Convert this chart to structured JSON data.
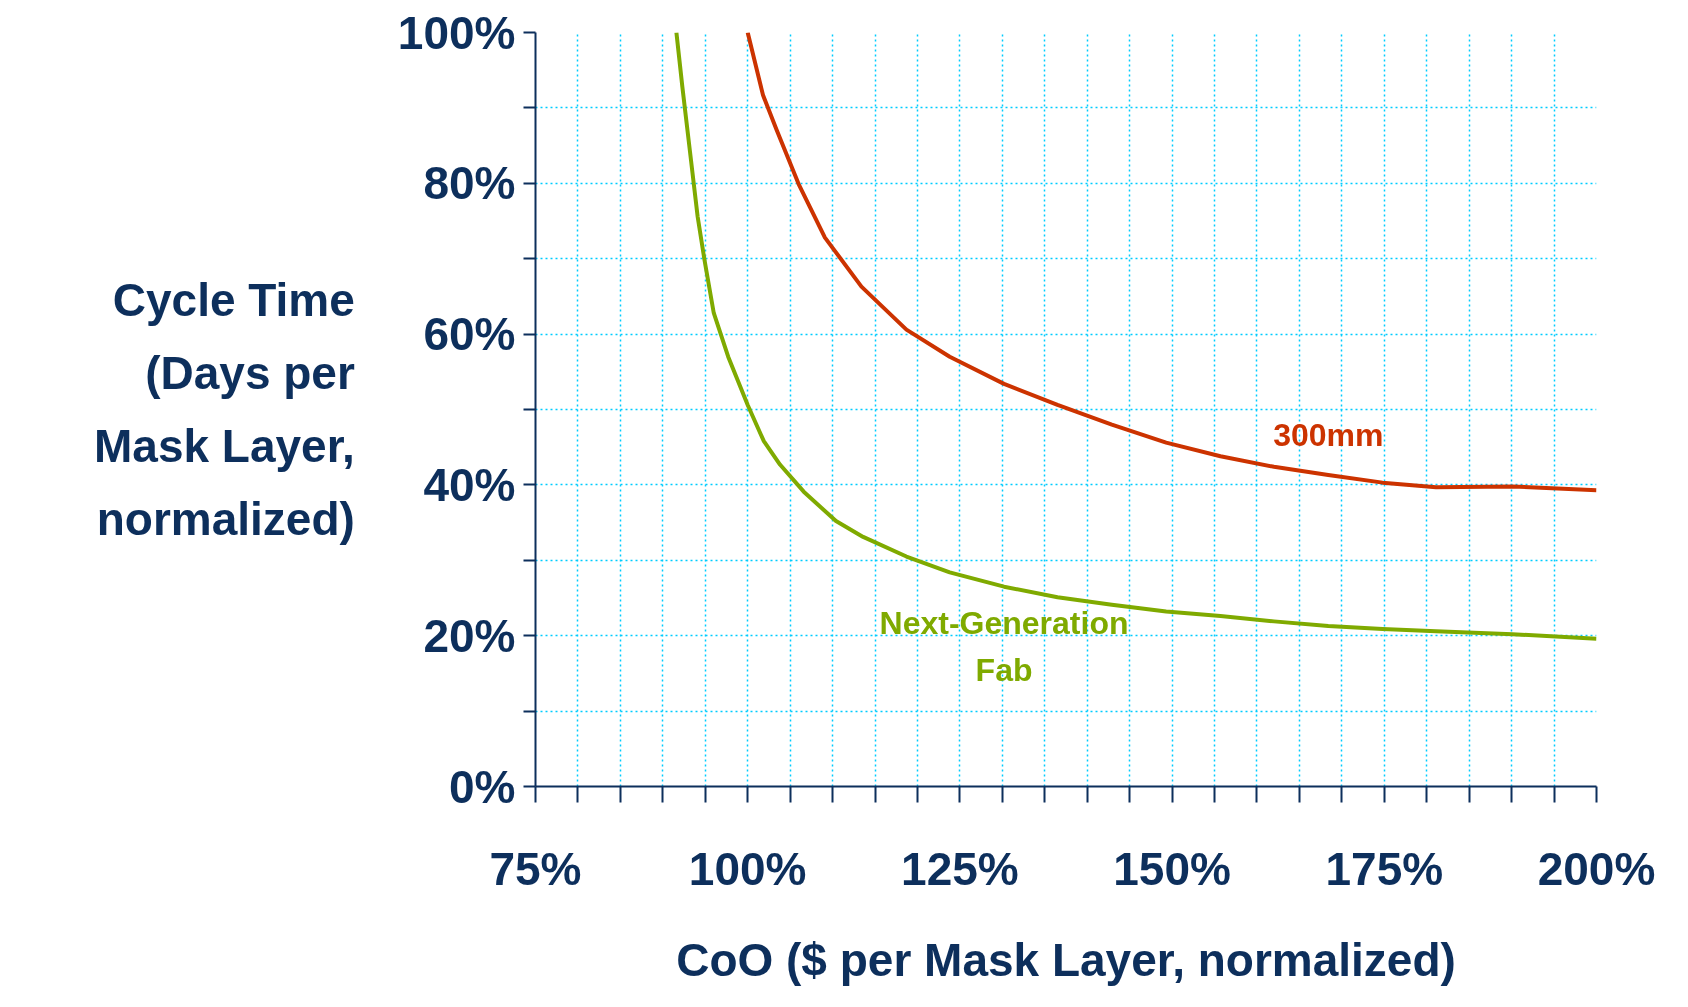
{
  "chart_data": {
    "type": "line",
    "xlabel": "CoO ($ per Mask Layer, normalized)",
    "ylabel": "Cycle Time\n(Days per\nMask Layer,\nnormalized)",
    "xlim": [
      75,
      200
    ],
    "ylim": [
      0,
      100
    ],
    "xticks": [
      {
        "value": 75,
        "label": "75%"
      },
      {
        "value": 80,
        "label": null
      },
      {
        "value": 85,
        "label": null
      },
      {
        "value": 90,
        "label": null
      },
      {
        "value": 95,
        "label": null
      },
      {
        "value": 100,
        "label": "100%"
      },
      {
        "value": 105,
        "label": null
      },
      {
        "value": 110,
        "label": null
      },
      {
        "value": 115,
        "label": null
      },
      {
        "value": 120,
        "label": null
      },
      {
        "value": 125,
        "label": "125%"
      },
      {
        "value": 130,
        "label": null
      },
      {
        "value": 135,
        "label": null
      },
      {
        "value": 140,
        "label": null
      },
      {
        "value": 145,
        "label": null
      },
      {
        "value": 150,
        "label": "150%"
      },
      {
        "value": 155,
        "label": null
      },
      {
        "value": 160,
        "label": null
      },
      {
        "value": 165,
        "label": null
      },
      {
        "value": 170,
        "label": null
      },
      {
        "value": 175,
        "label": "175%"
      },
      {
        "value": 180,
        "label": null
      },
      {
        "value": 185,
        "label": null
      },
      {
        "value": 190,
        "label": null
      },
      {
        "value": 195,
        "label": null
      },
      {
        "value": 200,
        "label": "200%"
      }
    ],
    "yticks": [
      {
        "value": 0,
        "label": "0%"
      },
      {
        "value": 10,
        "label": null
      },
      {
        "value": 20,
        "label": "20%"
      },
      {
        "value": 30,
        "label": null
      },
      {
        "value": 40,
        "label": "40%"
      },
      {
        "value": 50,
        "label": null
      },
      {
        "value": 60,
        "label": "60%"
      },
      {
        "value": 70,
        "label": null
      },
      {
        "value": 80,
        "label": "80%"
      },
      {
        "value": 90,
        "label": null
      },
      {
        "value": 100,
        "label": "100%"
      }
    ],
    "grid": true,
    "marker": "none",
    "line_style": "solid",
    "series": [
      {
        "name": "300mm",
        "color": "#cc3300",
        "x": [
          100,
          101.8,
          103.4,
          106,
          109.1,
          113.4,
          118.7,
          123.8,
          130.2,
          136.5,
          142.9,
          149.3,
          155.7,
          162,
          168.4,
          174.8,
          181.1,
          190.1,
          200
        ],
        "values": [
          100,
          91.7,
          87.1,
          79.9,
          72.8,
          66.3,
          60.6,
          57,
          53.4,
          50.6,
          48,
          45.6,
          43.8,
          42.4,
          41.3,
          40.3,
          39.7,
          39.8,
          39.3
        ]
      },
      {
        "name": "Next-Generation\nFab",
        "color": "#7faa00",
        "x": [
          91.6,
          92.3,
          93.2,
          94.1,
          94.9,
          96,
          97.7,
          100,
          101.9,
          103.8,
          106.6,
          110.4,
          113.6,
          118.7,
          123.8,
          130.2,
          136.5,
          142.9,
          149.3,
          155.7,
          162,
          168.4,
          174.8,
          181.1,
          190.1,
          200
        ],
        "values": [
          100,
          92.8,
          84.2,
          75.6,
          69.9,
          62.8,
          57,
          50.6,
          45.8,
          42.7,
          39.1,
          35.2,
          33.1,
          30.5,
          28.4,
          26.5,
          25.1,
          24.1,
          23.2,
          22.6,
          21.9,
          21.3,
          20.9,
          20.6,
          20.2,
          19.6
        ]
      }
    ]
  }
}
